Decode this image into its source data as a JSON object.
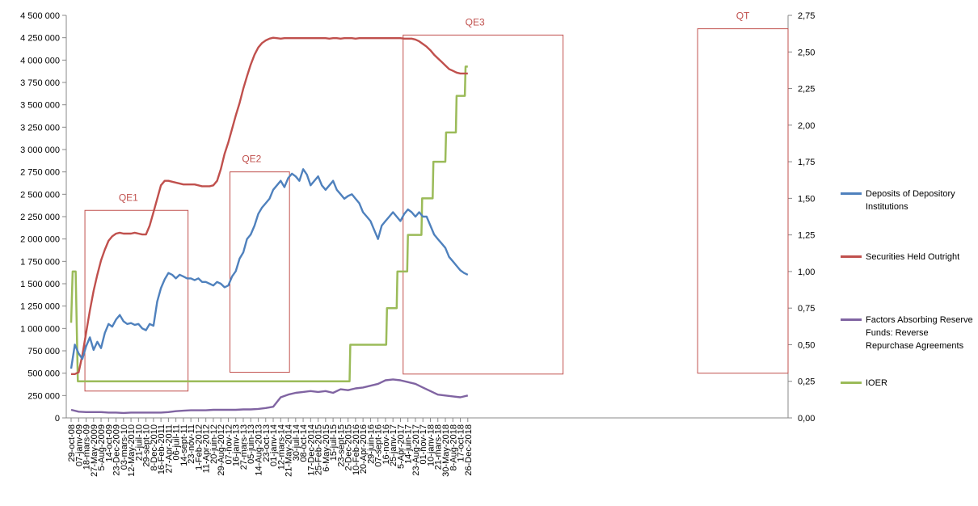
{
  "chart_data": {
    "type": "line",
    "title": "",
    "xlabel": "",
    "ylabel": "",
    "y_left": {
      "min": 0,
      "max": 4500000,
      "ticks": [
        0,
        250000,
        500000,
        750000,
        1000000,
        1250000,
        1500000,
        1750000,
        2000000,
        2250000,
        2500000,
        2750000,
        3000000,
        3250000,
        3500000,
        3750000,
        4000000,
        4250000,
        4500000
      ],
      "tick_labels": [
        "0",
        "250 000",
        "500 000",
        "750 000",
        "1 000 000",
        "1 250 000",
        "1 500 000",
        "1 750 000",
        "2 000 000",
        "2 250 000",
        "2 500 000",
        "2 750 000",
        "3 000 000",
        "3 250 000",
        "3 500 000",
        "3 750 000",
        "4 000 000",
        "4 250 000",
        "4 500 000"
      ]
    },
    "y_right": {
      "min": 0,
      "max": 2.75,
      "ticks": [
        0,
        0.25,
        0.5,
        0.75,
        1,
        1.25,
        1.5,
        1.75,
        2,
        2.25,
        2.5,
        2.75
      ],
      "tick_labels": [
        "0,00",
        "0,25",
        "0,50",
        "0,75",
        "1,00",
        "1,25",
        "1,50",
        "1,75",
        "2,00",
        "2,25",
        "2,50",
        "2,75"
      ]
    },
    "x_tick_labels": [
      "29-oct-08",
      "07-janv-09",
      "18-mars-09",
      "27-May-2009",
      "5-Aug-2009",
      "14-oct-09",
      "23-Dec-2009",
      "03-mars-10",
      "12-May-2010",
      "21-juil-10",
      "29-sept-10",
      "8-Dec-2010",
      "16-Feb-2011",
      "27-Apr-2011",
      "06-juil-11",
      "14-sept-11",
      "23-nov-11",
      "1-Feb-2012",
      "11-Apr-2012",
      "20-juin-12",
      "29-Aug-2012",
      "07-nov-12",
      "16-janv-13",
      "27-mars-13",
      "05-juin-13",
      "14-Aug-2013",
      "23-oct-13",
      "01-janv-14",
      "12-mars-14",
      "21-May-2014",
      "30-juil-14",
      "08-oct-14",
      "17-Dec-2014",
      "25-Feb-2015",
      "6-May-2015",
      "15-juil-15",
      "23-sept-15",
      "2-Dec-2015",
      "10-Feb-2016",
      "20-Apr-2016",
      "29-juin-16",
      "07-sept-16",
      "16-nov-16",
      "25-janv-17",
      "5-Apr-2017",
      "14-juin-17",
      "23-Aug-2017",
      "01-nov-17",
      "10-janv-18",
      "21-mars-18",
      "30-May-2018",
      "8-Aug-2018",
      "17-oct-18",
      "26-Dec-2018"
    ],
    "x_label_indices": [
      0,
      1,
      2,
      3,
      4,
      5,
      6,
      7,
      8,
      9,
      10,
      11,
      12,
      13,
      14,
      15,
      16,
      17,
      18,
      19,
      20,
      21,
      22,
      23,
      24,
      25,
      26,
      27,
      28,
      29,
      30,
      31,
      32,
      33,
      34,
      35,
      36,
      37,
      38,
      39,
      40,
      41,
      42,
      43,
      44,
      45,
      46,
      47,
      48,
      49,
      50,
      51,
      52,
      53
    ],
    "legend_position": "right",
    "grid": false,
    "series": [
      {
        "name": "Deposits of Depository Institutions",
        "axis": "left",
        "color": "#4f81bd",
        "x": [
          0,
          0.5,
          1,
          1.5,
          2,
          2.5,
          3,
          3.5,
          4,
          4.5,
          5,
          5.5,
          6,
          6.5,
          7,
          7.5,
          8,
          8.5,
          9,
          9.5,
          10,
          10.5,
          11,
          11.5,
          12,
          12.5,
          13,
          13.5,
          14,
          14.5,
          15,
          15.5,
          16,
          16.5,
          17,
          17.5,
          18,
          18.5,
          19,
          19.5,
          20,
          20.5,
          21,
          21.5,
          22,
          22.5,
          23,
          23.5,
          24,
          24.5,
          25,
          25.5,
          26,
          26.5,
          27,
          27.5,
          28,
          28.5,
          29,
          29.5,
          30,
          30.5,
          31,
          31.5,
          32,
          32.5,
          33,
          33.5,
          34,
          34.5,
          35,
          35.5,
          36,
          36.5,
          37,
          37.5,
          38,
          38.5,
          39,
          39.5,
          40,
          40.5,
          41,
          41.5,
          42,
          42.5,
          43,
          43.5,
          44,
          44.5,
          45,
          45.5,
          46,
          46.5,
          47,
          47.5,
          48,
          48.5,
          49,
          49.5,
          50,
          50.5,
          51,
          51.5,
          52,
          52.5,
          53
        ],
        "values": [
          550000,
          820000,
          720000,
          660000,
          800000,
          900000,
          760000,
          850000,
          780000,
          950000,
          1050000,
          1020000,
          1100000,
          1150000,
          1080000,
          1050000,
          1060000,
          1040000,
          1050000,
          1000000,
          980000,
          1050000,
          1030000,
          1300000,
          1450000,
          1550000,
          1620000,
          1600000,
          1560000,
          1600000,
          1580000,
          1560000,
          1560000,
          1540000,
          1560000,
          1520000,
          1520000,
          1500000,
          1480000,
          1520000,
          1500000,
          1460000,
          1480000,
          1580000,
          1640000,
          1780000,
          1850000,
          2000000,
          2050000,
          2150000,
          2280000,
          2350000,
          2400000,
          2450000,
          2550000,
          2600000,
          2650000,
          2580000,
          2680000,
          2730000,
          2700000,
          2650000,
          2780000,
          2720000,
          2600000,
          2650000,
          2700000,
          2600000,
          2550000,
          2600000,
          2650000,
          2550000,
          2500000,
          2450000,
          2480000,
          2500000,
          2450000,
          2400000,
          2300000,
          2250000,
          2200000,
          2100000,
          2000000,
          2150000,
          2200000,
          2250000,
          2300000,
          2250000,
          2200000,
          2280000,
          2330000,
          2300000,
          2250000,
          2300000,
          2250000,
          2250000,
          2150000,
          2050000,
          2000000,
          1950000,
          1900000,
          1800000,
          1750000,
          1700000,
          1650000,
          1620000,
          1600000
        ]
      },
      {
        "name": "Securities Held Outright",
        "axis": "left",
        "color": "#c0504d",
        "x": [
          0,
          0.5,
          1,
          1.5,
          2,
          2.5,
          3,
          3.5,
          4,
          4.5,
          5,
          5.5,
          6,
          6.5,
          7,
          7.5,
          8,
          8.5,
          9,
          9.5,
          10,
          10.5,
          11,
          11.5,
          12,
          12.5,
          13,
          13.5,
          14,
          14.5,
          15,
          15.5,
          16,
          16.5,
          17,
          17.5,
          18,
          18.5,
          19,
          19.5,
          20,
          20.5,
          21,
          21.5,
          22,
          22.5,
          23,
          23.5,
          24,
          24.5,
          25,
          25.5,
          26,
          26.5,
          27,
          27.5,
          28,
          28.5,
          29,
          29.5,
          30,
          30.5,
          31,
          31.5,
          32,
          32.5,
          33,
          33.5,
          34,
          34.5,
          35,
          35.5,
          36,
          36.5,
          37,
          37.5,
          38,
          38.5,
          39,
          39.5,
          40,
          40.5,
          41,
          41.5,
          42,
          42.5,
          43,
          43.5,
          44,
          44.5,
          45,
          45.5,
          46,
          46.5,
          47,
          47.5,
          48,
          48.5,
          49,
          49.5,
          50,
          50.5,
          51,
          51.5,
          52,
          52.5,
          53
        ],
        "values": [
          490000,
          490000,
          510000,
          700000,
          950000,
          1200000,
          1420000,
          1600000,
          1760000,
          1880000,
          1980000,
          2030000,
          2060000,
          2070000,
          2060000,
          2060000,
          2060000,
          2070000,
          2060000,
          2050000,
          2050000,
          2150000,
          2300000,
          2450000,
          2600000,
          2650000,
          2650000,
          2640000,
          2630000,
          2620000,
          2610000,
          2610000,
          2610000,
          2610000,
          2600000,
          2590000,
          2590000,
          2590000,
          2600000,
          2650000,
          2780000,
          2950000,
          3080000,
          3230000,
          3380000,
          3520000,
          3680000,
          3820000,
          3950000,
          4060000,
          4140000,
          4190000,
          4220000,
          4240000,
          4250000,
          4245000,
          4240000,
          4245000,
          4245000,
          4245000,
          4245000,
          4245000,
          4245000,
          4245000,
          4245000,
          4245000,
          4245000,
          4245000,
          4245000,
          4240000,
          4245000,
          4245000,
          4240000,
          4245000,
          4245000,
          4245000,
          4240000,
          4245000,
          4245000,
          4245000,
          4245000,
          4245000,
          4245000,
          4245000,
          4245000,
          4245000,
          4245000,
          4245000,
          4245000,
          4240000,
          4240000,
          4240000,
          4230000,
          4210000,
          4180000,
          4150000,
          4110000,
          4060000,
          4020000,
          3980000,
          3940000,
          3900000,
          3880000,
          3860000,
          3850000,
          3850000,
          3850000
        ]
      },
      {
        "name": "Factors Absorbing Reserve Funds: Reverse Repurchase Agreements",
        "axis": "left",
        "color": "#8064a2",
        "x": [
          0,
          1,
          2,
          3,
          4,
          5,
          6,
          7,
          8,
          9,
          10,
          11,
          12,
          13,
          14,
          15,
          16,
          17,
          18,
          19,
          20,
          21,
          22,
          23,
          24,
          25,
          26,
          27,
          28,
          29,
          30,
          31,
          32,
          33,
          34,
          35,
          36,
          37,
          38,
          39,
          40,
          41,
          42,
          43,
          44,
          45,
          46,
          47,
          48,
          49,
          50,
          51,
          52,
          53
        ],
        "values": [
          90000,
          70000,
          65000,
          65000,
          65000,
          60000,
          60000,
          55000,
          60000,
          60000,
          60000,
          60000,
          60000,
          65000,
          75000,
          80000,
          85000,
          85000,
          85000,
          90000,
          90000,
          90000,
          90000,
          95000,
          95000,
          100000,
          110000,
          125000,
          230000,
          260000,
          280000,
          290000,
          300000,
          290000,
          300000,
          280000,
          320000,
          310000,
          330000,
          340000,
          360000,
          380000,
          420000,
          430000,
          420000,
          400000,
          380000,
          340000,
          300000,
          260000,
          250000,
          240000,
          230000,
          250000
        ]
      },
      {
        "name": "IOER",
        "axis": "right",
        "color": "#9bbb59",
        "step": true,
        "x": [
          0,
          0.2,
          0.6,
          0.9,
          1.2,
          37.2,
          37.3,
          42.1,
          42.2,
          43.5,
          43.6,
          44.9,
          45.0,
          46.8,
          46.9,
          48.3,
          48.4,
          50.0,
          50.1,
          51.4,
          51.5,
          52.6,
          52.7,
          53.0
        ],
        "values": [
          0.65,
          1.0,
          1.0,
          0.25,
          0.25,
          0.25,
          0.5,
          0.5,
          0.75,
          0.75,
          1.0,
          1.0,
          1.25,
          1.25,
          1.5,
          1.5,
          1.75,
          1.75,
          1.95,
          1.95,
          2.2,
          2.2,
          2.4,
          2.4
        ]
      }
    ],
    "annotations": [
      {
        "label": "QE1",
        "x0": 1.25,
        "x1": 10.6,
        "y0": 300000,
        "y1": 2320000
      },
      {
        "label": "QE2",
        "x0": 14.4,
        "x1": 19.8,
        "y0": 510000,
        "y1": 2750000
      },
      {
        "label": "QE3",
        "x0": 30.1,
        "x1": 44.6,
        "y0": 490000,
        "y1": 4280000
      },
      {
        "label": "QT",
        "x0": 56.8,
        "x1": 65.0,
        "y0": 500000,
        "y1": 4350000
      }
    ]
  }
}
